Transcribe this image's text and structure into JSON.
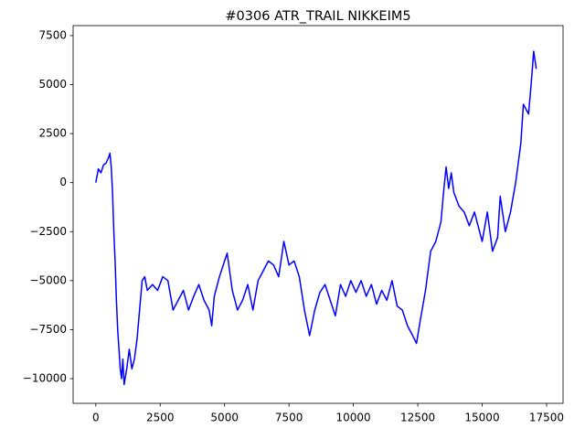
{
  "chart_data": {
    "type": "line",
    "title": "#0306 ATR_TRAIL NIKKEIM5",
    "xlim": [
      -880,
      18140
    ],
    "ylim": [
      -11260,
      8010
    ],
    "xticks": [
      0,
      2500,
      5000,
      7500,
      10000,
      12500,
      15000,
      17500
    ],
    "yticks": [
      {
        "value": -10000,
        "label": "−10000"
      },
      {
        "value": -7500,
        "label": "−7500"
      },
      {
        "value": -5000,
        "label": "−5000"
      },
      {
        "value": -2500,
        "label": "−2500"
      },
      0,
      2500,
      5000,
      7500
    ],
    "grid": false,
    "series": [
      {
        "color": "#0000ff",
        "x": [
          0,
          100,
          200,
          300,
          400,
          500,
          550,
          600,
          650,
          700,
          750,
          800,
          850,
          900,
          950,
          1000,
          1050,
          1100,
          1200,
          1300,
          1400,
          1500,
          1600,
          1700,
          1800,
          1900,
          2000,
          2200,
          2400,
          2600,
          2800,
          3000,
          3200,
          3400,
          3600,
          3800,
          4000,
          4200,
          4400,
          4500,
          4600,
          4800,
          5000,
          5100,
          5300,
          5500,
          5700,
          5900,
          6100,
          6300,
          6500,
          6700,
          6900,
          7100,
          7300,
          7500,
          7700,
          7900,
          8100,
          8300,
          8500,
          8700,
          8900,
          9100,
          9300,
          9500,
          9700,
          9900,
          10100,
          10300,
          10500,
          10700,
          10900,
          11100,
          11300,
          11500,
          11700,
          11900,
          12100,
          12300,
          12450,
          12600,
          12800,
          13000,
          13200,
          13400,
          13500,
          13600,
          13700,
          13800,
          13900,
          14100,
          14300,
          14500,
          14700,
          14900,
          15000,
          15200,
          15400,
          15600,
          15700,
          15900,
          16100,
          16300,
          16500,
          16600,
          16800,
          16900,
          17000,
          17100
        ],
        "values": [
          0,
          700,
          500,
          900,
          1000,
          1300,
          1500,
          800,
          -500,
          -2500,
          -4000,
          -6000,
          -7500,
          -8500,
          -9500,
          -10000,
          -9000,
          -10300,
          -9500,
          -8500,
          -9500,
          -9000,
          -8000,
          -6500,
          -5000,
          -4800,
          -5500,
          -5200,
          -5500,
          -4800,
          -5000,
          -6500,
          -6000,
          -5500,
          -6500,
          -5800,
          -5200,
          -6000,
          -6500,
          -7300,
          -5800,
          -4800,
          -4000,
          -3600,
          -5500,
          -6500,
          -6000,
          -5200,
          -6500,
          -5000,
          -4500,
          -4000,
          -4200,
          -4800,
          -3000,
          -4200,
          -4000,
          -4800,
          -6500,
          -7800,
          -6500,
          -5600,
          -5200,
          -6000,
          -6800,
          -5200,
          -5800,
          -5000,
          -5600,
          -5000,
          -5800,
          -5200,
          -6200,
          -5500,
          -6000,
          -5000,
          -6300,
          -6500,
          -7300,
          -7800,
          -8200,
          -7000,
          -5500,
          -3500,
          -3000,
          -2000,
          -500,
          800,
          -300,
          500,
          -500,
          -1200,
          -1500,
          -2200,
          -1500,
          -2500,
          -3000,
          -1500,
          -3500,
          -2800,
          -700,
          -2500,
          -1500,
          0,
          2000,
          4000,
          3500,
          5000,
          6700,
          5800
        ]
      }
    ]
  }
}
